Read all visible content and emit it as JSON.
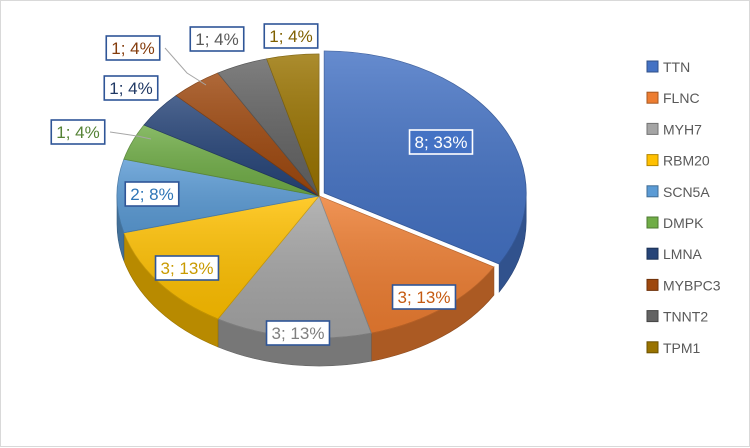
{
  "chart_data": {
    "type": "pie",
    "title": "",
    "legend_position": "right",
    "slices": [
      {
        "name": "TTN",
        "value": 8,
        "label": "8; 33%",
        "color": "#4472C4",
        "label_color": "#ffffff"
      },
      {
        "name": "FLNC",
        "value": 3,
        "label": "3; 13%",
        "color": "#ED7D31",
        "label_color": "#C55A11"
      },
      {
        "name": "MYH7",
        "value": 3,
        "label": "3; 13%",
        "color": "#A5A5A5",
        "label_color": "#7F7F7F"
      },
      {
        "name": "RBM20",
        "value": 3,
        "label": "3; 13%",
        "color": "#FFC000",
        "label_color": "#C99A00"
      },
      {
        "name": "SCN5A",
        "value": 2,
        "label": "2; 8%",
        "color": "#5B9BD5",
        "label_color": "#2E75B6"
      },
      {
        "name": "DMPK",
        "value": 1,
        "label": "1; 4%",
        "color": "#70AD47",
        "label_color": "#548235"
      },
      {
        "name": "LMNA",
        "value": 1,
        "label": "1; 4%",
        "color": "#264478",
        "label_color": "#1F3864"
      },
      {
        "name": "MYBPC3",
        "value": 1,
        "label": "1; 4%",
        "color": "#9E480E",
        "label_color": "#843C0C"
      },
      {
        "name": "TNNT2",
        "value": 1,
        "label": "1; 4%",
        "color": "#636363",
        "label_color": "#595959"
      },
      {
        "name": "TPM1",
        "value": 1,
        "label": "1; 4%",
        "color": "#997300",
        "label_color": "#7F6000"
      }
    ]
  }
}
